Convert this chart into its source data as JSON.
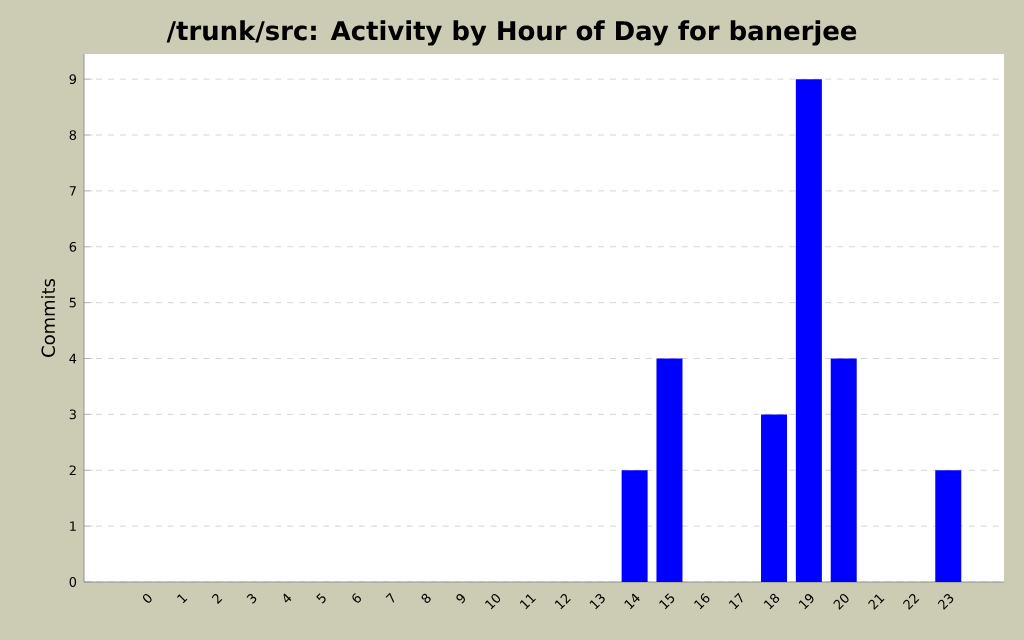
{
  "chart_data": {
    "type": "bar",
    "title": "/trunk/src: Activity by Hour of Day for banerjee",
    "ylabel": "Commits",
    "categories": [
      "0",
      "1",
      "2",
      "3",
      "4",
      "5",
      "6",
      "7",
      "8",
      "9",
      "10",
      "11",
      "12",
      "13",
      "14",
      "15",
      "16",
      "17",
      "18",
      "19",
      "20",
      "21",
      "22",
      "23"
    ],
    "values": [
      0,
      0,
      0,
      0,
      0,
      0,
      0,
      0,
      0,
      0,
      0,
      0,
      0,
      0,
      2,
      4,
      0,
      0,
      3,
      9,
      4,
      0,
      0,
      2
    ],
    "color": "#0000ff",
    "ylim": [
      0,
      9.45
    ],
    "yticks": [
      0,
      1,
      2,
      3,
      4,
      5,
      6,
      7,
      8,
      9
    ],
    "grid": "y"
  }
}
